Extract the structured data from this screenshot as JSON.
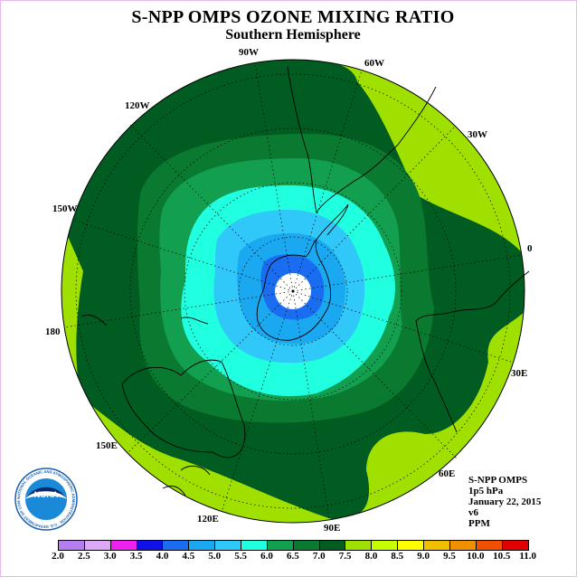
{
  "title": "S-NPP OMPS OZONE MIXING RATIO",
  "subtitle": "Southern Hemisphere",
  "longitude_labels": [
    "90W",
    "60W",
    "30W",
    "0",
    "30E",
    "60E",
    "90E",
    "120E",
    "150E",
    "180",
    "150W",
    "120W"
  ],
  "info": {
    "instrument": "S-NPP OMPS",
    "level": "1p5 hPa",
    "date": "January 22, 2015",
    "version": "v6",
    "units": "PPM"
  },
  "logo": {
    "text": "NOAA",
    "ring_text": "NATIONAL OCEANIC AND ATMOSPHERIC ADMINISTRATION · U.S. DEPARTMENT OF COMMERCE"
  },
  "colorbar": {
    "ticks": [
      "2.0",
      "2.5",
      "3.0",
      "3.5",
      "4.0",
      "4.5",
      "5.0",
      "5.5",
      "6.0",
      "6.5",
      "7.0",
      "7.5",
      "8.0",
      "8.5",
      "9.0",
      "9.5",
      "10.0",
      "10.5",
      "11.0"
    ],
    "colors": [
      "#b47ef0",
      "#dca8f8",
      "#f020f0",
      "#1010e8",
      "#1a6cf0",
      "#1aa8f0",
      "#30c8f8",
      "#20ffe0",
      "#12a050",
      "#0a7a30",
      "#005c20",
      "#a0e000",
      "#c8ff00",
      "#ffff00",
      "#f0c000",
      "#f09000",
      "#f05000",
      "#e00000",
      "#8c5a40"
    ]
  },
  "map_colors": {
    "lt_8": "#a0e000",
    "lt_7": "#005c20",
    "lt_6_5": "#0a7a30",
    "lt_6": "#12a050",
    "lt_5_5": "#20ffe0",
    "lt_5": "#30c8f8",
    "lt_4_5": "#1aa8f0",
    "lt_4": "#1a6cf0"
  }
}
